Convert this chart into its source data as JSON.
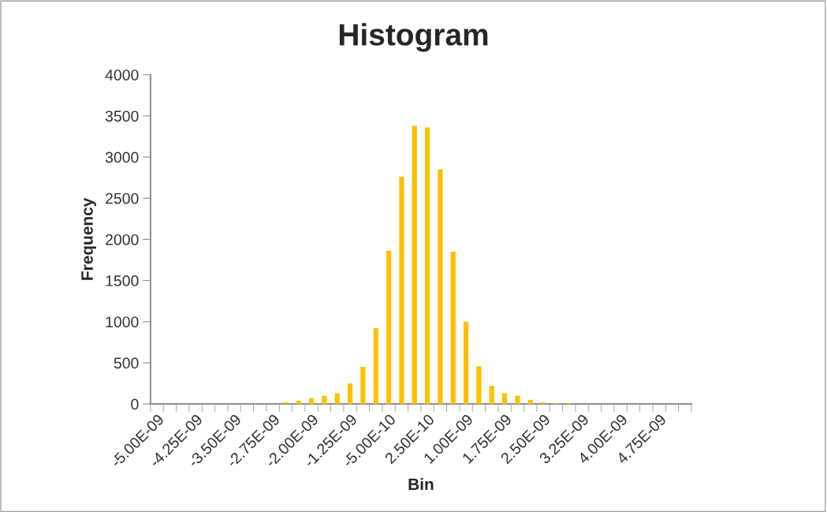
{
  "chart_data": {
    "type": "bar",
    "title": "Histogram",
    "xlabel": "Bin",
    "ylabel": "Frequency",
    "categories": [
      "-5.00E-09",
      null,
      null,
      "-4.25E-09",
      null,
      null,
      "-3.50E-09",
      null,
      null,
      "-2.75E-09",
      null,
      null,
      "-2.00E-09",
      null,
      null,
      "-1.25E-09",
      null,
      null,
      "-5.00E-10",
      null,
      null,
      "2.50E-10",
      null,
      null,
      "1.00E-09",
      null,
      null,
      "1.75E-09",
      null,
      null,
      "2.50E-09",
      null,
      null,
      "3.25E-09",
      null,
      null,
      "4.00E-09",
      null,
      null,
      "4.75E-09",
      null,
      null
    ],
    "values": [
      0,
      0,
      0,
      0,
      0,
      0,
      0,
      0,
      0,
      0,
      20,
      40,
      70,
      100,
      130,
      250,
      450,
      920,
      1860,
      2760,
      3380,
      3360,
      2850,
      1850,
      1000,
      460,
      220,
      130,
      100,
      50,
      20,
      10,
      10,
      0,
      0,
      0,
      0,
      0,
      0,
      0,
      0,
      0
    ],
    "color": "#ffc000",
    "ylim": [
      0,
      4000
    ],
    "yticks": [
      0,
      500,
      1000,
      1500,
      2000,
      2500,
      3000,
      3500,
      4000
    ],
    "grid": false,
    "legend": false
  }
}
